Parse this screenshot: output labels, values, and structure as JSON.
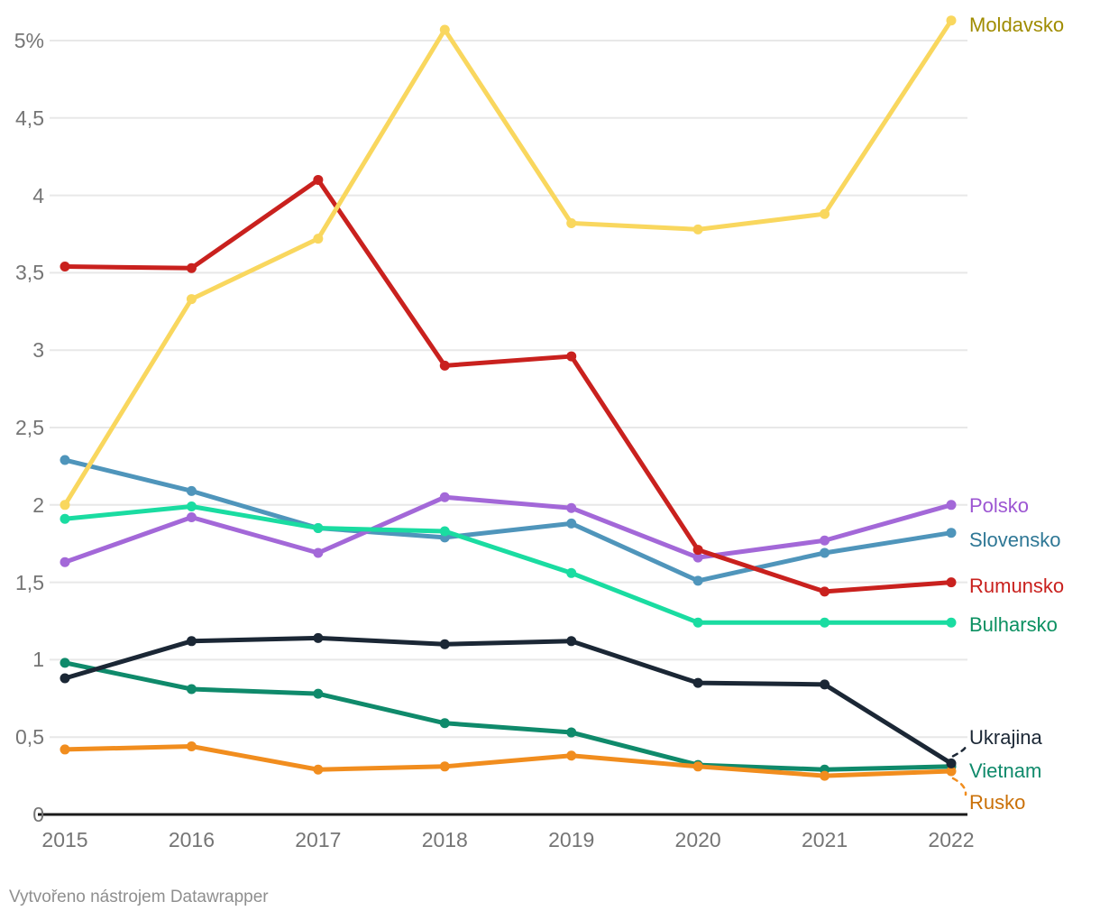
{
  "chart_data": {
    "type": "line",
    "title": "",
    "xlabel": "",
    "ylabel": "",
    "unit": "%",
    "grid": "horizontal",
    "legend_position": "right-edge-labels",
    "ylim": [
      0,
      5.2
    ],
    "x": [
      "2015",
      "2016",
      "2017",
      "2018",
      "2019",
      "2020",
      "2021",
      "2022"
    ],
    "y_ticks": [
      {
        "label": "5%",
        "value": 5
      },
      {
        "label": "4,5",
        "value": 4.5
      },
      {
        "label": "4",
        "value": 4
      },
      {
        "label": "3,5",
        "value": 3.5
      },
      {
        "label": "3",
        "value": 3
      },
      {
        "label": "2,5",
        "value": 2.5
      },
      {
        "label": "2",
        "value": 2
      },
      {
        "label": "1,5",
        "value": 1.5
      },
      {
        "label": "1",
        "value": 1
      },
      {
        "label": "0,5",
        "value": 0.5
      },
      {
        "label": "0",
        "value": 0
      }
    ],
    "series": [
      {
        "name": "Moldavsko",
        "color": "#f9d75e",
        "label_color": "#a08c00",
        "values": [
          2.0,
          3.33,
          3.72,
          5.07,
          3.82,
          3.78,
          3.88,
          5.13
        ]
      },
      {
        "name": "Polsko",
        "color": "#a368d8",
        "label_color": "#9c55d2",
        "values": [
          1.63,
          1.92,
          1.69,
          2.05,
          1.98,
          1.66,
          1.77,
          2.0
        ]
      },
      {
        "name": "Slovensko",
        "color": "#4f95bb",
        "label_color": "#2e7795",
        "values": [
          2.29,
          2.09,
          1.85,
          1.79,
          1.88,
          1.51,
          1.69,
          1.82
        ]
      },
      {
        "name": "Rumunsko",
        "color": "#c9211e",
        "label_color": "#c9211e",
        "values": [
          3.54,
          3.53,
          4.1,
          2.9,
          2.96,
          1.71,
          1.44,
          1.5
        ]
      },
      {
        "name": "Bulharsko",
        "color": "#1adca1",
        "label_color": "#0b9061",
        "values": [
          1.91,
          1.99,
          1.85,
          1.83,
          1.56,
          1.24,
          1.24,
          1.24
        ]
      },
      {
        "name": "Ukrajina",
        "color": "#1b2735",
        "label_color": "#1b2735",
        "values": [
          0.88,
          1.12,
          1.14,
          1.1,
          1.12,
          0.85,
          0.84,
          0.33
        ]
      },
      {
        "name": "Vietnam",
        "color": "#0f8a6b",
        "label_color": "#0f8a6b",
        "values": [
          0.98,
          0.81,
          0.78,
          0.59,
          0.53,
          0.32,
          0.29,
          0.31
        ]
      },
      {
        "name": "Rusko",
        "color": "#f18d1e",
        "label_color": "#ca7007",
        "values": [
          0.42,
          0.44,
          0.29,
          0.31,
          0.38,
          0.31,
          0.25,
          0.28
        ]
      }
    ],
    "colors": {
      "gridline": "#e8e8e8",
      "axis_line": "#1a1a1a",
      "tick_text": "#757575"
    }
  },
  "footer": {
    "credit": "Vytvořeno nástrojem Datawrapper"
  }
}
